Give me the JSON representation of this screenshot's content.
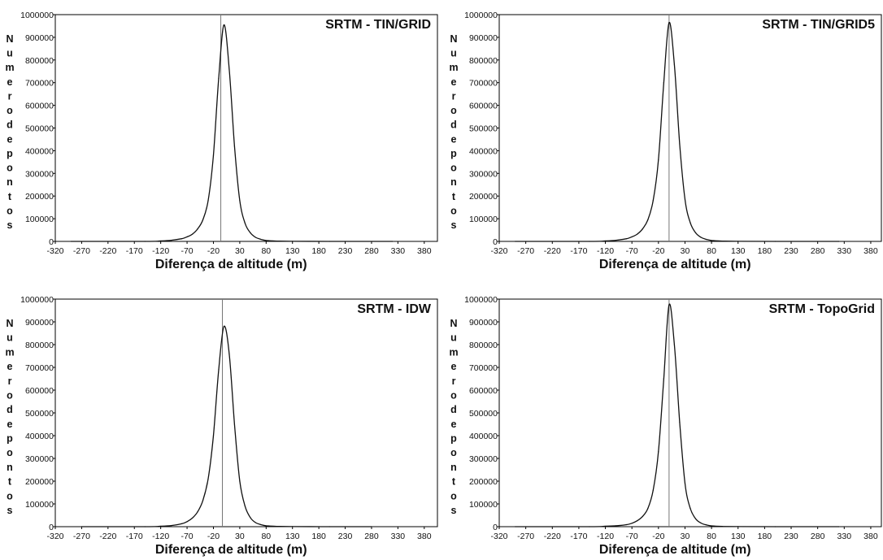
{
  "chart_data": [
    {
      "type": "line",
      "title": "SRTM - TIN/GRID",
      "xlabel": "Diferença de altitude (m)",
      "ylabel": "Numero de pontos",
      "xticks": [
        -320,
        -270,
        -220,
        -170,
        -120,
        -70,
        -20,
        30,
        80,
        130,
        180,
        230,
        280,
        330,
        380
      ],
      "yticks": [
        0,
        100000,
        200000,
        300000,
        400000,
        500000,
        600000,
        700000,
        800000,
        900000,
        1000000
      ],
      "xlim": [
        -320,
        405
      ],
      "ylim": [
        0,
        1000000
      ],
      "reference_line_x": -6,
      "series": [
        {
          "x": [
            -290,
            -150,
            -120,
            -100,
            -80,
            -70,
            -60,
            -50,
            -40,
            -30,
            -20,
            -10,
            0,
            10,
            20,
            30,
            40,
            50,
            60,
            70,
            80,
            100,
            130,
            200,
            320
          ],
          "values": [
            0,
            0,
            2000,
            5000,
            12000,
            20000,
            32000,
            55000,
            95000,
            180000,
            380000,
            720000,
            955000,
            760000,
            420000,
            180000,
            80000,
            38000,
            18000,
            9000,
            4000,
            1500,
            500,
            0,
            0
          ]
        }
      ]
    },
    {
      "type": "line",
      "title": "SRTM - TIN/GRID5",
      "xlabel": "Diferença de altitude (m)",
      "ylabel": "Numero de pontos",
      "xticks": [
        -320,
        -270,
        -220,
        -170,
        -120,
        -70,
        -20,
        30,
        80,
        130,
        180,
        230,
        280,
        330,
        380
      ],
      "yticks": [
        0,
        100000,
        200000,
        300000,
        400000,
        500000,
        600000,
        700000,
        800000,
        900000,
        1000000
      ],
      "xlim": [
        -320,
        400
      ],
      "ylim": [
        0,
        1000000
      ],
      "reference_line_x": 0,
      "series": [
        {
          "x": [
            -290,
            -150,
            -120,
            -100,
            -80,
            -70,
            -60,
            -50,
            -40,
            -30,
            -20,
            -10,
            0,
            10,
            20,
            30,
            40,
            50,
            60,
            70,
            80,
            100,
            130,
            200,
            320
          ],
          "values": [
            0,
            0,
            2000,
            5000,
            12000,
            20000,
            32000,
            55000,
            95000,
            180000,
            360000,
            700000,
            965000,
            780000,
            430000,
            185000,
            82000,
            38000,
            18000,
            9000,
            4000,
            1500,
            500,
            0,
            0
          ]
        }
      ]
    },
    {
      "type": "line",
      "title": "SRTM - IDW",
      "xlabel": "Diferença de altitude (m)",
      "ylabel": "Numero de pontos",
      "xticks": [
        -320,
        -270,
        -220,
        -170,
        -120,
        -70,
        -20,
        30,
        80,
        130,
        180,
        230,
        280,
        330,
        380
      ],
      "yticks": [
        0,
        100000,
        200000,
        300000,
        400000,
        500000,
        600000,
        700000,
        800000,
        900000,
        1000000
      ],
      "xlim": [
        -320,
        405
      ],
      "ylim": [
        0,
        1000000
      ],
      "reference_line_x": -3,
      "series": [
        {
          "x": [
            -270,
            -150,
            -120,
            -100,
            -80,
            -70,
            -60,
            -50,
            -40,
            -30,
            -20,
            -10,
            0,
            10,
            20,
            30,
            40,
            50,
            60,
            70,
            80,
            100,
            130,
            200,
            280
          ],
          "values": [
            0,
            0,
            2000,
            5000,
            13000,
            22000,
            38000,
            65000,
            115000,
            210000,
            400000,
            690000,
            880000,
            760000,
            450000,
            200000,
            90000,
            40000,
            18000,
            9000,
            4000,
            1500,
            500,
            0,
            0
          ]
        }
      ]
    },
    {
      "type": "line",
      "title": "SRTM - TopoGrid",
      "xlabel": "Diferença de altitude (m)",
      "ylabel": "Numero de pontos",
      "xticks": [
        -320,
        -270,
        -220,
        -170,
        -120,
        -70,
        -20,
        30,
        80,
        130,
        180,
        230,
        280,
        330,
        380
      ],
      "yticks": [
        0,
        100000,
        200000,
        300000,
        400000,
        500000,
        600000,
        700000,
        800000,
        900000,
        1000000
      ],
      "xlim": [
        -320,
        400
      ],
      "ylim": [
        0,
        1000000
      ],
      "reference_line_x": 0,
      "series": [
        {
          "x": [
            -290,
            -150,
            -120,
            -100,
            -80,
            -70,
            -60,
            -50,
            -40,
            -30,
            -20,
            -10,
            0,
            10,
            20,
            30,
            40,
            50,
            60,
            70,
            80,
            100,
            130,
            200,
            320
          ],
          "values": [
            0,
            0,
            2000,
            4000,
            9000,
            15000,
            26000,
            45000,
            80000,
            160000,
            330000,
            650000,
            975000,
            800000,
            460000,
            190000,
            80000,
            35000,
            16000,
            8000,
            3500,
            1200,
            400,
            0,
            0
          ]
        }
      ]
    }
  ]
}
